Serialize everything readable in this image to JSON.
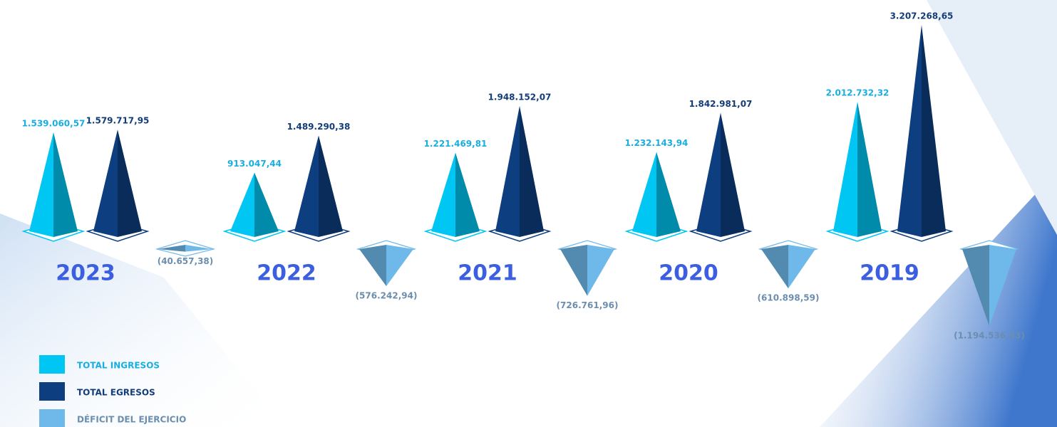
{
  "chart_data": {
    "type": "pyramid",
    "categories": [
      "2023",
      "2022",
      "2021",
      "2020",
      "2019"
    ],
    "series": [
      {
        "name": "TOTAL INGRESOS",
        "color": "#00c6f4",
        "values": [
          1539060.57,
          913047.44,
          1221469.81,
          1232143.94,
          2012732.32
        ],
        "value_labels": [
          "1.539.060,57",
          "913.047,44",
          "1.221.469,81",
          "1.232.143,94",
          "2.012.732,32"
        ]
      },
      {
        "name": "TOTAL EGRESOS",
        "color": "#0d3f80",
        "values": [
          1579717.95,
          1489290.38,
          1948152.07,
          1842981.07,
          3207268.65
        ],
        "value_labels": [
          "1.579.717,95",
          "1.489.290,38",
          "1.948.152,07",
          "1.842.981,07",
          "3.207.268,65"
        ]
      },
      {
        "name": "DÉFICIT DEL EJERCICIO",
        "color": "#6fb9ea",
        "values": [
          -40657.38,
          -576242.94,
          -726761.96,
          -610898.59,
          -1194536.33
        ],
        "value_labels": [
          "(40.657,38)",
          "(576.242,94)",
          "(726.761,96)",
          "(610.898,59)",
          "(1.194.536,33)"
        ]
      }
    ]
  }
}
